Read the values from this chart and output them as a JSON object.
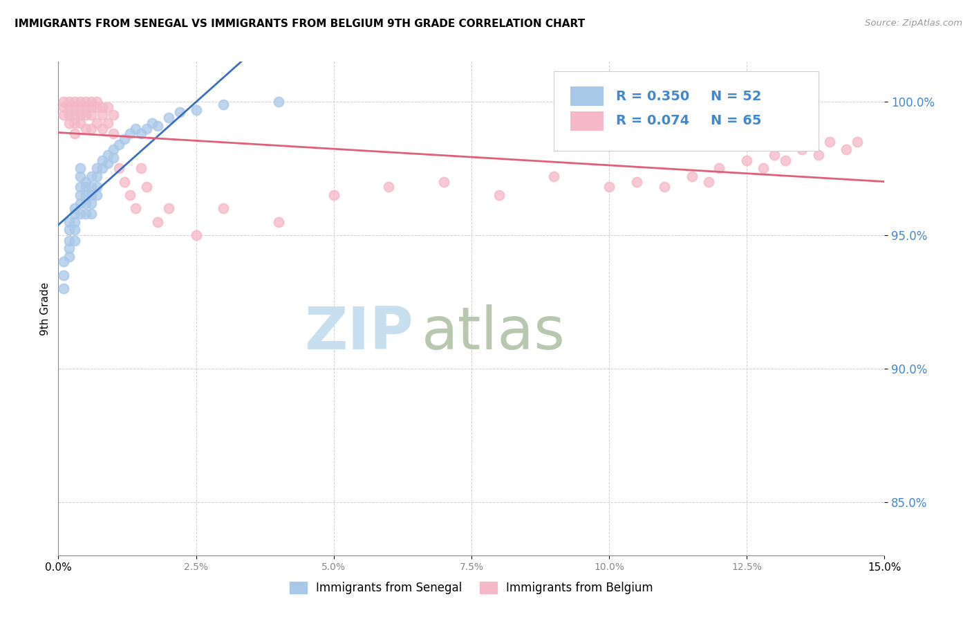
{
  "title": "IMMIGRANTS FROM SENEGAL VS IMMIGRANTS FROM BELGIUM 9TH GRADE CORRELATION CHART",
  "source": "Source: ZipAtlas.com",
  "ylabel": "9th Grade",
  "ytick_labels": [
    "85.0%",
    "90.0%",
    "95.0%",
    "100.0%"
  ],
  "ytick_values": [
    0.85,
    0.9,
    0.95,
    1.0
  ],
  "xtick_labels": [
    "0.0%",
    "2.5%",
    "5.0%",
    "7.5%",
    "10.0%",
    "12.5%",
    "15.0%"
  ],
  "xtick_values": [
    0.0,
    0.025,
    0.05,
    0.075,
    0.1,
    0.125,
    0.15
  ],
  "xmin": 0.0,
  "xmax": 0.15,
  "ymin": 0.83,
  "ymax": 1.015,
  "legend_r_senegal": "R = 0.350",
  "legend_n_senegal": "N = 52",
  "legend_r_belgium": "R = 0.074",
  "legend_n_belgium": "N = 65",
  "legend_label_senegal": "Immigrants from Senegal",
  "legend_label_belgium": "Immigrants from Belgium",
  "color_senegal": "#a8c8e8",
  "color_belgium": "#f4b8c8",
  "color_trendline_senegal": "#3a6fbf",
  "color_trendline_belgium": "#e0607a",
  "watermark_zip": "ZIP",
  "watermark_atlas": "atlas",
  "watermark_color_zip": "#c8dff0",
  "watermark_color_atlas": "#a0b8a0",
  "senegal_x": [
    0.001,
    0.001,
    0.001,
    0.002,
    0.002,
    0.002,
    0.002,
    0.002,
    0.003,
    0.003,
    0.003,
    0.003,
    0.003,
    0.004,
    0.004,
    0.004,
    0.004,
    0.004,
    0.004,
    0.005,
    0.005,
    0.005,
    0.005,
    0.005,
    0.006,
    0.006,
    0.006,
    0.006,
    0.006,
    0.007,
    0.007,
    0.007,
    0.007,
    0.008,
    0.008,
    0.009,
    0.009,
    0.01,
    0.01,
    0.011,
    0.012,
    0.013,
    0.014,
    0.015,
    0.016,
    0.017,
    0.018,
    0.02,
    0.022,
    0.025,
    0.03,
    0.04
  ],
  "senegal_y": [
    0.94,
    0.935,
    0.93,
    0.955,
    0.952,
    0.948,
    0.945,
    0.942,
    0.96,
    0.958,
    0.955,
    0.952,
    0.948,
    0.975,
    0.972,
    0.968,
    0.965,
    0.962,
    0.958,
    0.97,
    0.968,
    0.965,
    0.962,
    0.958,
    0.972,
    0.968,
    0.965,
    0.962,
    0.958,
    0.975,
    0.972,
    0.968,
    0.965,
    0.978,
    0.975,
    0.98,
    0.977,
    0.982,
    0.979,
    0.984,
    0.986,
    0.988,
    0.99,
    0.988,
    0.99,
    0.992,
    0.991,
    0.994,
    0.996,
    0.997,
    0.999,
    1.0
  ],
  "belgium_x": [
    0.001,
    0.001,
    0.001,
    0.002,
    0.002,
    0.002,
    0.002,
    0.003,
    0.003,
    0.003,
    0.003,
    0.003,
    0.004,
    0.004,
    0.004,
    0.004,
    0.005,
    0.005,
    0.005,
    0.005,
    0.006,
    0.006,
    0.006,
    0.006,
    0.007,
    0.007,
    0.007,
    0.008,
    0.008,
    0.008,
    0.009,
    0.009,
    0.01,
    0.01,
    0.011,
    0.012,
    0.013,
    0.014,
    0.015,
    0.016,
    0.018,
    0.02,
    0.025,
    0.03,
    0.04,
    0.05,
    0.06,
    0.07,
    0.08,
    0.09,
    0.1,
    0.105,
    0.11,
    0.115,
    0.118,
    0.12,
    0.125,
    0.128,
    0.13,
    0.132,
    0.135,
    0.138,
    0.14,
    0.143,
    0.145
  ],
  "belgium_y": [
    1.0,
    0.998,
    0.995,
    1.0,
    0.998,
    0.995,
    0.992,
    1.0,
    0.998,
    0.995,
    0.992,
    0.988,
    1.0,
    0.998,
    0.995,
    0.992,
    1.0,
    0.998,
    0.995,
    0.99,
    1.0,
    0.998,
    0.995,
    0.99,
    1.0,
    0.998,
    0.992,
    0.998,
    0.995,
    0.99,
    0.998,
    0.992,
    0.995,
    0.988,
    0.975,
    0.97,
    0.965,
    0.96,
    0.975,
    0.968,
    0.955,
    0.96,
    0.95,
    0.96,
    0.955,
    0.965,
    0.968,
    0.97,
    0.965,
    0.972,
    0.968,
    0.97,
    0.968,
    0.972,
    0.97,
    0.975,
    0.978,
    0.975,
    0.98,
    0.978,
    0.982,
    0.98,
    0.985,
    0.982,
    0.985
  ]
}
